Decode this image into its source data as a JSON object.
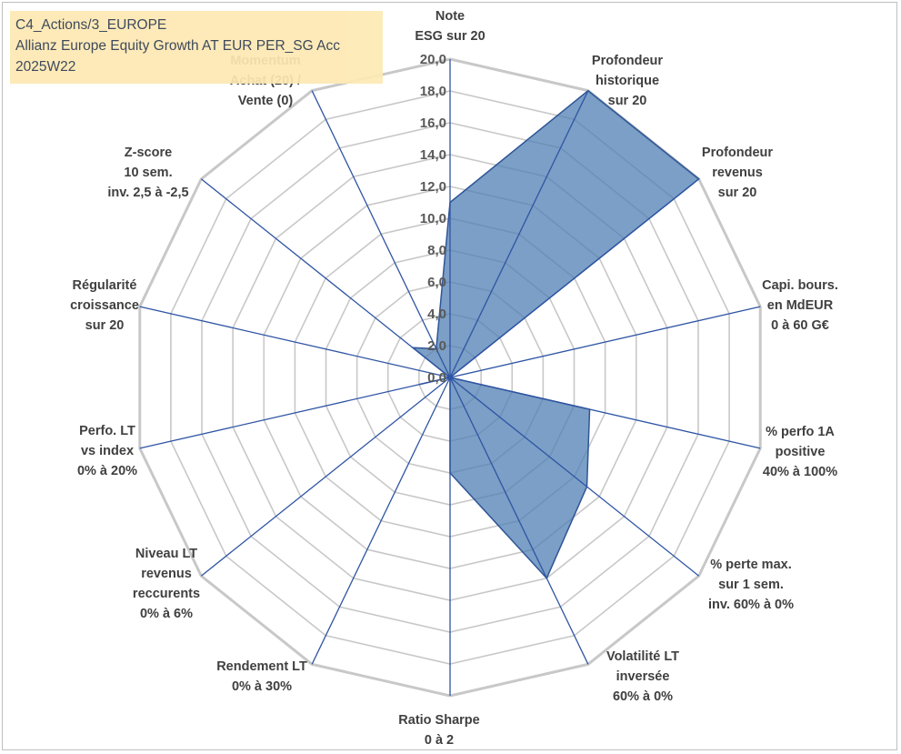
{
  "title": {
    "line1": "C4_Actions/3_EUROPE",
    "line2": "Allianz Europe Equity Growth AT EUR PER_SG Acc",
    "line3": "2025W22"
  },
  "chart_data": {
    "type": "radar",
    "rmax": 20,
    "tick_step": 2,
    "tick_labels": [
      "0,0",
      "2,0",
      "4,0",
      "6,0",
      "8,0",
      "10,0",
      "12,0",
      "14,0",
      "16,0",
      "18,0",
      "20,0"
    ],
    "axes": [
      {
        "label": [
          "Note",
          "ESG sur 20"
        ],
        "value": 11
      },
      {
        "label": [
          "Profondeur",
          "historique",
          "sur 20"
        ],
        "value": 20
      },
      {
        "label": [
          "Profondeur",
          "revenus",
          "sur 20"
        ],
        "value": 20
      },
      {
        "label": [
          "Capi. bours.",
          "en MdEUR",
          "0 à 60 G€"
        ],
        "value": 0
      },
      {
        "label": [
          "% perfo 1A",
          "positive",
          "40% à 100%"
        ],
        "value": 9
      },
      {
        "label": [
          "% perte max.",
          "sur 1 sem.",
          "inv. 60% à 0%"
        ],
        "value": 11
      },
      {
        "label": [
          "Volatilité LT",
          "inversée",
          "60% à 0%"
        ],
        "value": 14
      },
      {
        "label": [
          "Ratio Sharpe",
          "0 à 2"
        ],
        "value": 6
      },
      {
        "label": [
          "Rendement LT",
          "0% à 30%"
        ],
        "value": 0
      },
      {
        "label": [
          "Niveau LT",
          "revenus",
          "reccurents",
          "0% à 6%"
        ],
        "value": 0
      },
      {
        "label": [
          "Perfo. LT",
          "vs index",
          "0% à 20%"
        ],
        "value": 2
      },
      {
        "label": [
          "Régularité",
          "croissance",
          "sur 20"
        ],
        "value": 0
      },
      {
        "label": [
          "Z-score",
          "10 sem.",
          "inv. 2,5 à -2,5"
        ],
        "value": 3
      },
      {
        "label": [
          "Momentum",
          "Achat (20) /",
          "Vente (0)"
        ],
        "value": 2
      }
    ],
    "fill_color": "#4f7fb3",
    "line_color": "#2f5597",
    "grid_color": "#c8c8c8"
  }
}
